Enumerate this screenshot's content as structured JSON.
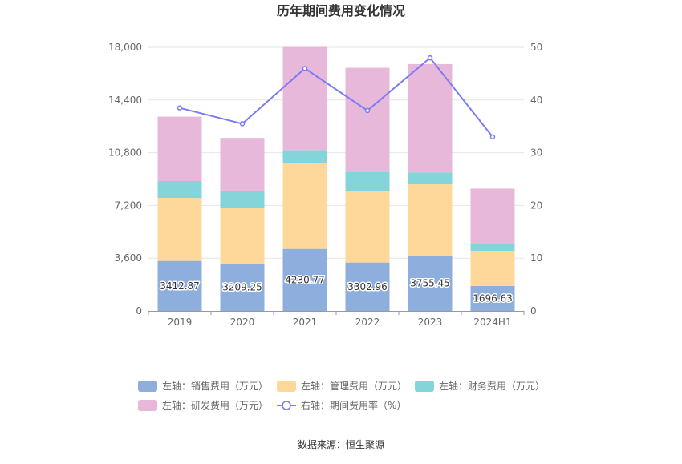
{
  "chart_data": {
    "type": "bar",
    "title": "历年期间费用变化情况",
    "categories": [
      "2019",
      "2020",
      "2021",
      "2022",
      "2023",
      "2024H1"
    ],
    "series": [
      {
        "name": "左轴：销售费用（万元）",
        "axis": "left",
        "kind": "bar",
        "color": "#8eaedd",
        "values": [
          3412.87,
          3209.25,
          4230.77,
          3302.96,
          3755.45,
          1696.63
        ]
      },
      {
        "name": "左轴：管理费用（万元）",
        "axis": "left",
        "kind": "bar",
        "color": "#fed89a",
        "values": [
          4300,
          3800,
          5850,
          4900,
          4900,
          2400
        ]
      },
      {
        "name": "左轴：财务费用（万元）",
        "axis": "left",
        "kind": "bar",
        "color": "#84d5d9",
        "values": [
          1150,
          1200,
          900,
          1300,
          800,
          450
        ]
      },
      {
        "name": "左轴：研发费用（万元）",
        "axis": "left",
        "kind": "bar",
        "color": "#e7b8da",
        "values": [
          4400,
          3600,
          7050,
          7100,
          7400,
          3800
        ]
      },
      {
        "name": "右轴：期间费用率（%）",
        "axis": "right",
        "kind": "line",
        "color": "#7b7cf2",
        "values": [
          38.5,
          35.5,
          46.0,
          38.0,
          48.0,
          33.0
        ]
      }
    ],
    "data_labels": [
      "3412.87",
      "3209.25",
      "4230.77",
      "3302.96",
      "3755.45",
      "1696.63"
    ],
    "y_left": {
      "ylim": [
        0,
        18000
      ],
      "ticks": [
        "0",
        "3,600",
        "7,200",
        "10,800",
        "14,400",
        "18,000"
      ]
    },
    "y_right": {
      "ylim": [
        0,
        50
      ],
      "ticks": [
        "0",
        "10",
        "20",
        "30",
        "40",
        "50"
      ]
    },
    "legend_position": "bottom",
    "grid": true
  },
  "source_text": "数据来源：恒生聚源"
}
